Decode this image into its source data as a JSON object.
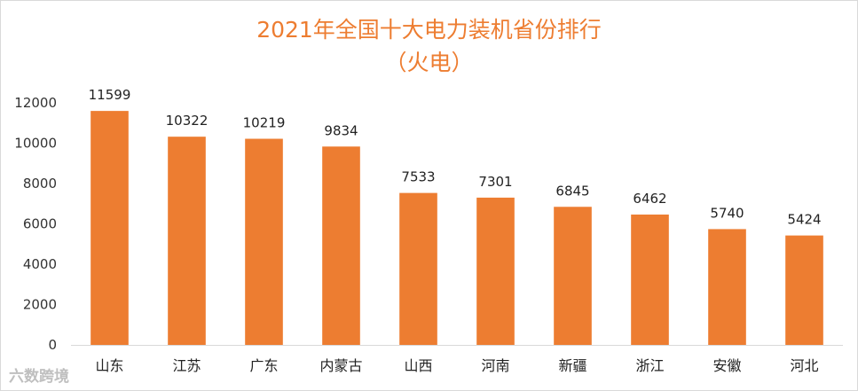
{
  "chart_data": {
    "type": "bar",
    "title": "2021年全国十大电力装机省份排行",
    "subtitle": "（火电）",
    "categories": [
      "山东",
      "江苏",
      "广东",
      "内蒙古",
      "山西",
      "河南",
      "新疆",
      "浙江",
      "安徽",
      "河北"
    ],
    "values": [
      11599,
      10322,
      10219,
      9834,
      7533,
      7301,
      6845,
      6462,
      5740,
      5424
    ],
    "ylim": [
      0,
      12000
    ],
    "yticks": [
      "0",
      "2000",
      "4000",
      "6000",
      "8000",
      "10000",
      "12000"
    ],
    "grid": false,
    "bar_color": "#ed7d31"
  },
  "watermark": "六数跨境"
}
